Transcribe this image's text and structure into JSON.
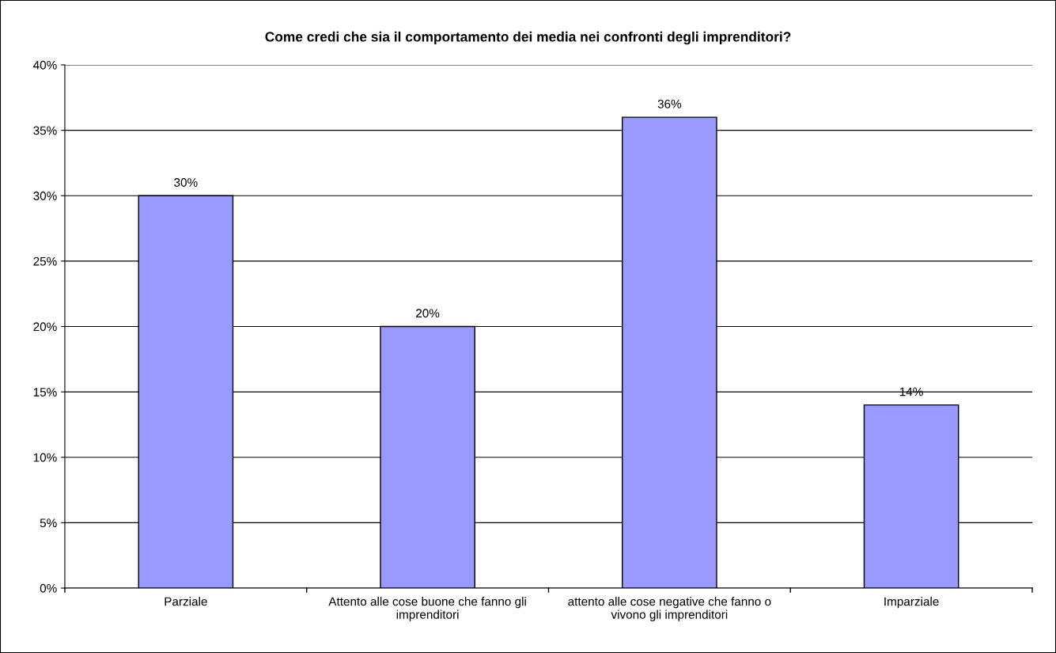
{
  "chart_data": {
    "type": "bar",
    "title": "Come credi che sia il comportamento dei media nei confronti degli imprenditori?",
    "categories": [
      "Parziale",
      "Attento alle cose buone che fanno gli imprenditori",
      "attento alle cose negative che fanno o vivono gli imprenditori",
      "Imparziale"
    ],
    "values": [
      30,
      20,
      36,
      14
    ],
    "value_labels": [
      "30%",
      "20%",
      "36%",
      "14%"
    ],
    "color": "#9999ff",
    "ylim": [
      0,
      40
    ],
    "yticks": [
      {
        "value": 0,
        "label": "0%"
      },
      {
        "value": 5,
        "label": "5%"
      },
      {
        "value": 10,
        "label": "10%"
      },
      {
        "value": 15,
        "label": "15%"
      },
      {
        "value": 20,
        "label": "20%"
      },
      {
        "value": 25,
        "label": "25%"
      },
      {
        "value": 30,
        "label": "30%"
      },
      {
        "value": 35,
        "label": "35%"
      },
      {
        "value": 40,
        "label": "40%"
      }
    ],
    "grid": "y"
  }
}
